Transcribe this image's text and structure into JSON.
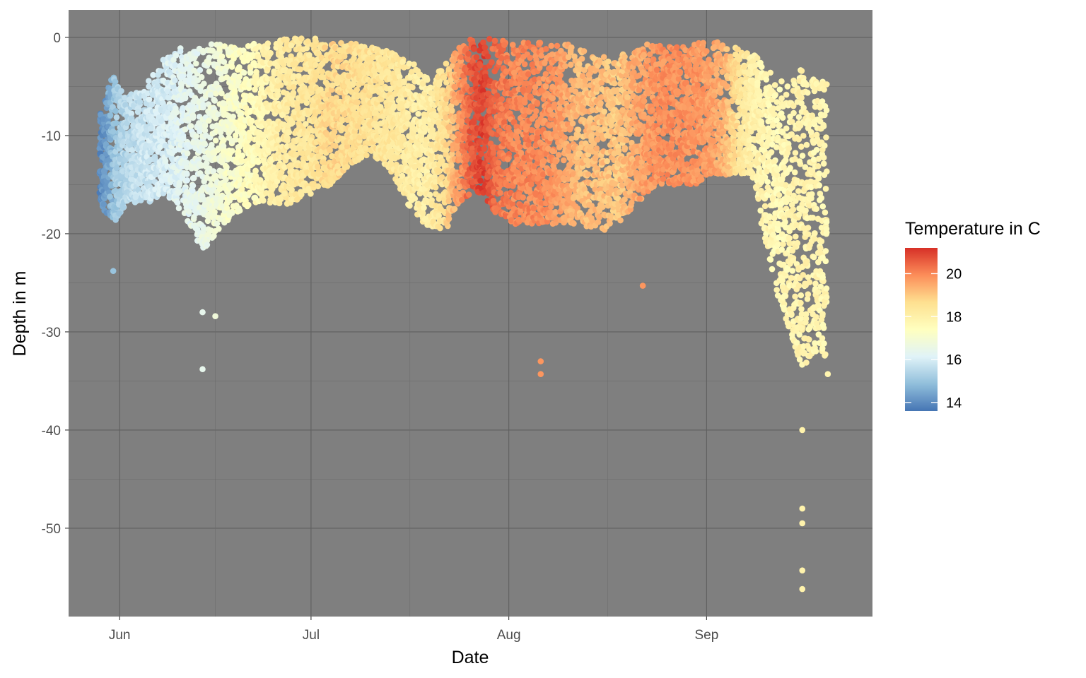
{
  "chart_data": {
    "type": "scatter",
    "title": "",
    "xlabel": "Date",
    "ylabel": "Depth in m",
    "x_ticks": [
      "Jun",
      "Jul",
      "Aug",
      "Sep"
    ],
    "x_tick_dates": [
      "06-01",
      "07-01",
      "08-01",
      "09-01"
    ],
    "xlim": [
      "05-24",
      "09-27"
    ],
    "y_ticks": [
      0,
      -10,
      -20,
      -30,
      -40,
      -50
    ],
    "ylim": [
      -59,
      2.8
    ],
    "grid": true,
    "background": "#7f7f7f",
    "legend": {
      "title": "Temperature in C",
      "position": "right",
      "breaks": [
        14,
        16,
        18,
        20
      ],
      "range": [
        13.6,
        21.2
      ],
      "palette": [
        "#4575b4",
        "#91bfdb",
        "#e0f3f8",
        "#ffffbf",
        "#fee090",
        "#fc8d59",
        "#d73027"
      ]
    },
    "series": [
      {
        "description": "daily dive profiles",
        "columns": [
          "date",
          "min_depth_m",
          "max_depth_m",
          "temperature_c"
        ],
        "points": [
          [
            "05-29",
            -7,
            -17,
            14.0
          ],
          [
            "05-30",
            -6,
            -18,
            14.3
          ],
          [
            "05-31",
            -3,
            -19,
            15.0
          ],
          [
            "06-02",
            -6,
            -17,
            15.5
          ],
          [
            "06-05",
            -5,
            -17,
            15.8
          ],
          [
            "06-08",
            -2,
            -16,
            16.0
          ],
          [
            "06-11",
            -1,
            -18,
            16.3
          ],
          [
            "06-14",
            -1,
            -22,
            16.5
          ],
          [
            "06-16",
            -0.5,
            -20,
            16.8
          ],
          [
            "06-19",
            -1,
            -18,
            17.2
          ],
          [
            "06-22",
            -0.5,
            -17,
            17.5
          ],
          [
            "06-25",
            -0.5,
            -17,
            18.0
          ],
          [
            "06-28",
            0,
            -17,
            18.3
          ],
          [
            "07-01",
            0,
            -16,
            18.4
          ],
          [
            "07-04",
            -0.5,
            -15,
            18.8
          ],
          [
            "07-07",
            -0.5,
            -13,
            18.6
          ],
          [
            "07-10",
            -1,
            -12,
            18.5
          ],
          [
            "07-13",
            -1,
            -13,
            18.4
          ],
          [
            "07-16",
            -2,
            -17,
            18.2
          ],
          [
            "07-19",
            -4,
            -19,
            18.0
          ],
          [
            "07-22",
            -3,
            -20,
            18.6
          ],
          [
            "07-24",
            -1,
            -17,
            19.6
          ],
          [
            "07-26",
            0,
            -16,
            20.6
          ],
          [
            "07-28",
            0,
            -16,
            21.0
          ],
          [
            "07-30",
            0,
            -18,
            20.3
          ],
          [
            "08-02",
            -0.5,
            -19,
            20.0
          ],
          [
            "08-05",
            -0.5,
            -19,
            20.0
          ],
          [
            "08-09",
            -0.5,
            -19,
            19.7
          ],
          [
            "08-12",
            -1,
            -19,
            19.2
          ],
          [
            "08-15",
            -2,
            -20,
            19.2
          ],
          [
            "08-18",
            -2,
            -19,
            19.0
          ],
          [
            "08-21",
            -1,
            -17,
            19.5
          ],
          [
            "08-24",
            -0.5,
            -15,
            19.8
          ],
          [
            "08-27",
            -0.5,
            -15,
            19.9
          ],
          [
            "08-30",
            -0.5,
            -15,
            19.8
          ],
          [
            "09-02",
            -0.5,
            -14,
            19.6
          ],
          [
            "09-04",
            -0.5,
            -14,
            19.3
          ],
          [
            "09-06",
            -1,
            -14,
            18.5
          ],
          [
            "09-08",
            -1,
            -14,
            18.0
          ],
          [
            "09-10",
            -3,
            -20,
            17.8
          ],
          [
            "09-12",
            -4,
            -26,
            17.6
          ],
          [
            "09-14",
            -5,
            -30,
            17.8
          ],
          [
            "09-16",
            -3,
            -34,
            17.9
          ],
          [
            "09-18",
            -4,
            -32,
            17.8
          ],
          [
            "09-20",
            -4,
            -33,
            17.8
          ]
        ]
      },
      {
        "description": "individual deep dives",
        "columns": [
          "date",
          "depth_m",
          "temperature_c"
        ],
        "points": [
          [
            "05-31",
            -23.8,
            15.0
          ],
          [
            "06-14",
            -28,
            16.4
          ],
          [
            "06-14",
            -33.8,
            16.4
          ],
          [
            "06-16",
            -28.4,
            16.8
          ],
          [
            "08-06",
            -34.3,
            19.8
          ],
          [
            "08-06",
            -33,
            19.8
          ],
          [
            "08-22",
            -25.3,
            19.8
          ],
          [
            "09-16",
            -40,
            17.9
          ],
          [
            "09-16",
            -48,
            17.9
          ],
          [
            "09-16",
            -49.5,
            17.9
          ],
          [
            "09-16",
            -54.3,
            17.9
          ],
          [
            "09-16",
            -56.2,
            17.9
          ],
          [
            "09-20",
            -34.3,
            17.8
          ]
        ]
      }
    ]
  }
}
